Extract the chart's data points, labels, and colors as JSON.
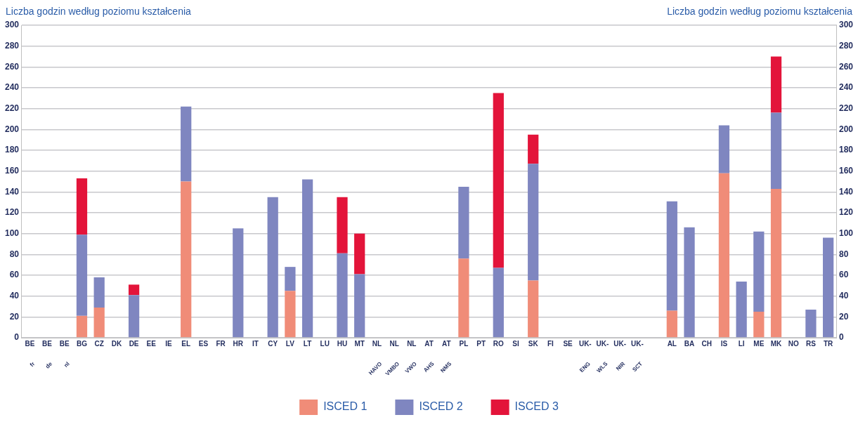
{
  "chart_data": {
    "type": "bar",
    "stacked": true,
    "ylabel": "Liczba godzin według poziomu kształcenia",
    "y2label": "Liczba godzin według poziomu kształcenia",
    "categories": [
      "BE\nfr",
      "BE\nde",
      "BE\nnl",
      "BG",
      "CZ",
      "DK",
      "DE",
      "EE",
      "IE",
      "EL",
      "ES",
      "FR",
      "HR",
      "IT",
      "CY",
      "LV",
      "LT",
      "LU",
      "HU",
      "MT",
      "NL\nHAVO",
      "NL\nVMBO",
      "NL\nVWO",
      "AT\nAHS",
      "AT\nNMS",
      "PL",
      "PT",
      "RO",
      "SI",
      "SK",
      "FI",
      "SE",
      "UK-\nENG",
      "UK-\nWLS",
      "UK-\nNIR",
      "UK-\nSCT",
      null,
      "AL",
      "BA",
      "CH",
      "IS",
      "LI",
      "ME",
      "MK",
      "NO",
      "RS",
      "TR"
    ],
    "series": [
      {
        "name": "ISCED 1",
        "color": "#f08c78",
        "values": [
          null,
          null,
          null,
          21,
          29,
          null,
          null,
          null,
          null,
          150,
          null,
          null,
          null,
          null,
          null,
          45,
          null,
          null,
          null,
          null,
          null,
          null,
          null,
          null,
          null,
          76,
          null,
          null,
          null,
          55,
          null,
          null,
          null,
          null,
          null,
          null,
          null,
          26,
          null,
          null,
          158,
          null,
          25,
          143,
          null,
          null,
          null
        ]
      },
      {
        "name": "ISCED 2",
        "color": "#7f86c0",
        "values": [
          null,
          null,
          null,
          78,
          29,
          null,
          41,
          null,
          null,
          72,
          null,
          null,
          105,
          null,
          135,
          23,
          152,
          null,
          81,
          61,
          null,
          null,
          null,
          null,
          null,
          69,
          null,
          67,
          null,
          112,
          null,
          null,
          null,
          null,
          null,
          null,
          null,
          105,
          106,
          null,
          46,
          54,
          77,
          73,
          null,
          27,
          96
        ]
      },
      {
        "name": "ISCED 3",
        "color": "#e3143a",
        "values": [
          null,
          null,
          null,
          54,
          null,
          null,
          10,
          null,
          null,
          null,
          null,
          null,
          null,
          null,
          null,
          null,
          null,
          null,
          54,
          39,
          null,
          null,
          null,
          null,
          null,
          null,
          null,
          168,
          null,
          28,
          null,
          null,
          null,
          null,
          null,
          null,
          null,
          null,
          null,
          null,
          null,
          null,
          null,
          54,
          null,
          null,
          null
        ]
      }
    ],
    "ylim": [
      0,
      300
    ],
    "yticks": [
      0,
      20,
      40,
      60,
      80,
      100,
      120,
      140,
      160,
      180,
      200,
      220,
      240,
      260,
      280,
      300
    ],
    "y2lim": [
      0,
      300
    ],
    "y2ticks": [
      0,
      20,
      40,
      60,
      80,
      100,
      120,
      140,
      160,
      180,
      200,
      220,
      240,
      260,
      280,
      300
    ],
    "grid": "y",
    "legend": "bottom"
  }
}
